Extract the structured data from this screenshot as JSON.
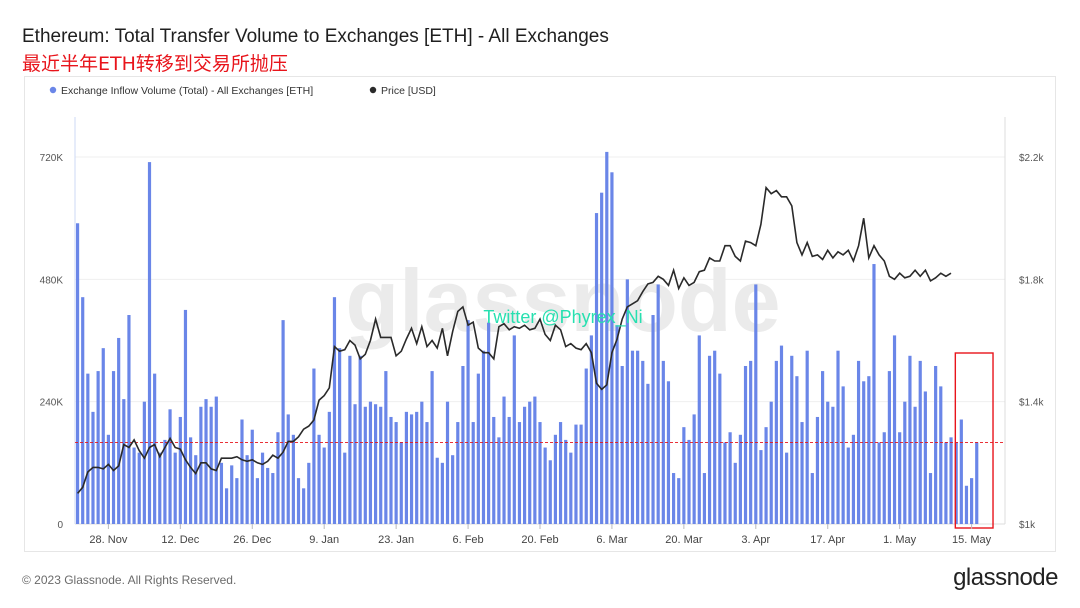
{
  "header": {
    "title": "Ethereum: Total Transfer Volume to Exchanges [ETH] - All Exchanges",
    "subtitle": "最近半年ETH转移到交易所抛压"
  },
  "watermark": {
    "logo": "glassnode",
    "twitter": "Twitter @Phyrex_Ni"
  },
  "footer": {
    "copyright": "© 2023 Glassnode. All Rights Reserved.",
    "logo": "glassnode"
  },
  "colors": {
    "bars": "#6a86e8",
    "price": "#2a2a2a",
    "refline": "#e8141b",
    "highlight": "#e8141b",
    "twitter": "#27e0b0"
  },
  "chart_data": {
    "type": "bar+line",
    "legend": [
      {
        "label": "Exchange Inflow Volume (Total) - All Exchanges [ETH]",
        "color": "#6a86e8"
      },
      {
        "label": "Price [USD]",
        "color": "#2a2a2a"
      }
    ],
    "legend_position": "top-left",
    "grid": true,
    "y_left": {
      "min": 0,
      "max": 720000,
      "ticks": [
        0,
        240000,
        480000,
        720000
      ],
      "tick_labels": [
        "0",
        "240K",
        "480K",
        "720K"
      ]
    },
    "y_right": {
      "min": 1000,
      "max": 2200,
      "ticks": [
        1000,
        1400,
        1800,
        2200
      ],
      "tick_labels": [
        "$1k",
        "$1.4k",
        "$1.8k",
        "$2.2k"
      ]
    },
    "x": {
      "start_date": "2022-11-22",
      "end_date": "2023-05-21",
      "tick_labels": [
        "28. Nov",
        "12. Dec",
        "26. Dec",
        "9. Jan",
        "23. Jan",
        "6. Feb",
        "20. Feb",
        "6. Mar",
        "20. Mar",
        "3. Apr",
        "17. Apr",
        "1. May",
        "15. May"
      ],
      "tick_dates": [
        "2022-11-28",
        "2022-12-12",
        "2022-12-26",
        "2023-01-09",
        "2023-01-23",
        "2023-02-06",
        "2023-02-20",
        "2023-03-06",
        "2023-03-20",
        "2023-04-03",
        "2023-04-17",
        "2023-05-01",
        "2023-05-15"
      ]
    },
    "reference_line": {
      "value": 160000,
      "axis": "left",
      "style": "dashed"
    },
    "highlight": {
      "from": "2023-05-13",
      "to": "2023-05-18"
    },
    "series": [
      {
        "name": "Exchange Inflow Volume (Total) - All Exchanges [ETH]",
        "type": "bar",
        "axis": "left",
        "values": [
          590000,
          445000,
          295000,
          220000,
          300000,
          345000,
          175000,
          300000,
          365000,
          245000,
          410000,
          150000,
          140000,
          240000,
          710000,
          295000,
          140000,
          165000,
          225000,
          140000,
          210000,
          420000,
          170000,
          135000,
          230000,
          245000,
          230000,
          250000,
          120000,
          70000,
          115000,
          90000,
          205000,
          135000,
          185000,
          90000,
          140000,
          110000,
          100000,
          180000,
          400000,
          215000,
          175000,
          90000,
          70000,
          120000,
          305000,
          175000,
          150000,
          220000,
          445000,
          345000,
          140000,
          330000,
          235000,
          330000,
          230000,
          240000,
          235000,
          230000,
          300000,
          210000,
          200000,
          160000,
          220000,
          215000,
          220000,
          240000,
          200000,
          300000,
          130000,
          120000,
          240000,
          135000,
          200000,
          310000,
          400000,
          200000,
          295000,
          340000,
          395000,
          210000,
          170000,
          250000,
          210000,
          370000,
          200000,
          230000,
          240000,
          250000,
          200000,
          150000,
          125000,
          175000,
          200000,
          165000,
          140000,
          195000,
          195000,
          305000,
          370000,
          610000,
          650000,
          730000,
          690000,
          390000,
          310000,
          480000,
          340000,
          340000,
          320000,
          275000,
          410000,
          470000,
          320000,
          280000,
          100000,
          90000,
          190000,
          165000,
          215000,
          370000,
          100000,
          330000,
          340000,
          295000,
          160000,
          180000,
          120000,
          175000,
          310000,
          320000,
          470000,
          145000,
          190000,
          240000,
          320000,
          350000,
          140000,
          330000,
          290000,
          200000,
          340000,
          100000,
          210000,
          300000,
          240000,
          230000,
          340000,
          270000,
          150000,
          175000,
          320000,
          280000,
          290000,
          510000,
          160000,
          180000,
          300000,
          370000,
          180000,
          240000,
          330000,
          230000,
          320000,
          260000,
          100000,
          310000,
          270000,
          160000,
          170000,
          160000,
          205000,
          75000,
          90000,
          160000
        ]
      },
      {
        "name": "Price [USD]",
        "type": "line",
        "axis": "right",
        "values": [
          1100,
          1120,
          1170,
          1185,
          1185,
          1180,
          1195,
          1175,
          1190,
          1260,
          1250,
          1275,
          1240,
          1215,
          1250,
          1260,
          1220,
          1250,
          1280,
          1250,
          1245,
          1210,
          1185,
          1165,
          1200,
          1200,
          1180,
          1175,
          1215,
          1215,
          1215,
          1220,
          1210,
          1205,
          1210,
          1200,
          1195,
          1205,
          1225,
          1215,
          1235,
          1270,
          1270,
          1285,
          1310,
          1320,
          1340,
          1405,
          1420,
          1445,
          1580,
          1565,
          1570,
          1600,
          1585,
          1540,
          1555,
          1600,
          1670,
          1610,
          1610,
          1610,
          1550,
          1565,
          1605,
          1640,
          1590,
          1645,
          1580,
          1600,
          1575,
          1640,
          1550,
          1630,
          1695,
          1710,
          1650,
          1660,
          1575,
          1560,
          1560,
          1540,
          1645,
          1655,
          1635,
          1645,
          1640,
          1650,
          1635,
          1640,
          1670,
          1620,
          1600,
          1650,
          1635,
          1580,
          1590,
          1575,
          1570,
          1590,
          1560,
          1460,
          1440,
          1455,
          1560,
          1605,
          1670,
          1710,
          1720,
          1730,
          1760,
          1785,
          1790,
          1810,
          1800,
          1780,
          1830,
          1770,
          1805,
          1780,
          1790,
          1825,
          1830,
          1870,
          1860,
          1860,
          1910,
          1910,
          1875,
          1860,
          1925,
          1920,
          1910,
          1980,
          2100,
          2080,
          2090,
          2070,
          2070,
          2040,
          1920,
          1880,
          1920,
          1875,
          1880,
          1865,
          1895,
          1870,
          1890,
          1880,
          1895,
          1860,
          1910,
          2000,
          1870,
          1910,
          1880,
          1860,
          1810,
          1800,
          1820,
          1805,
          1810,
          1830,
          1810,
          1830,
          1795,
          1805,
          1820,
          1810,
          1820
        ]
      }
    ]
  }
}
